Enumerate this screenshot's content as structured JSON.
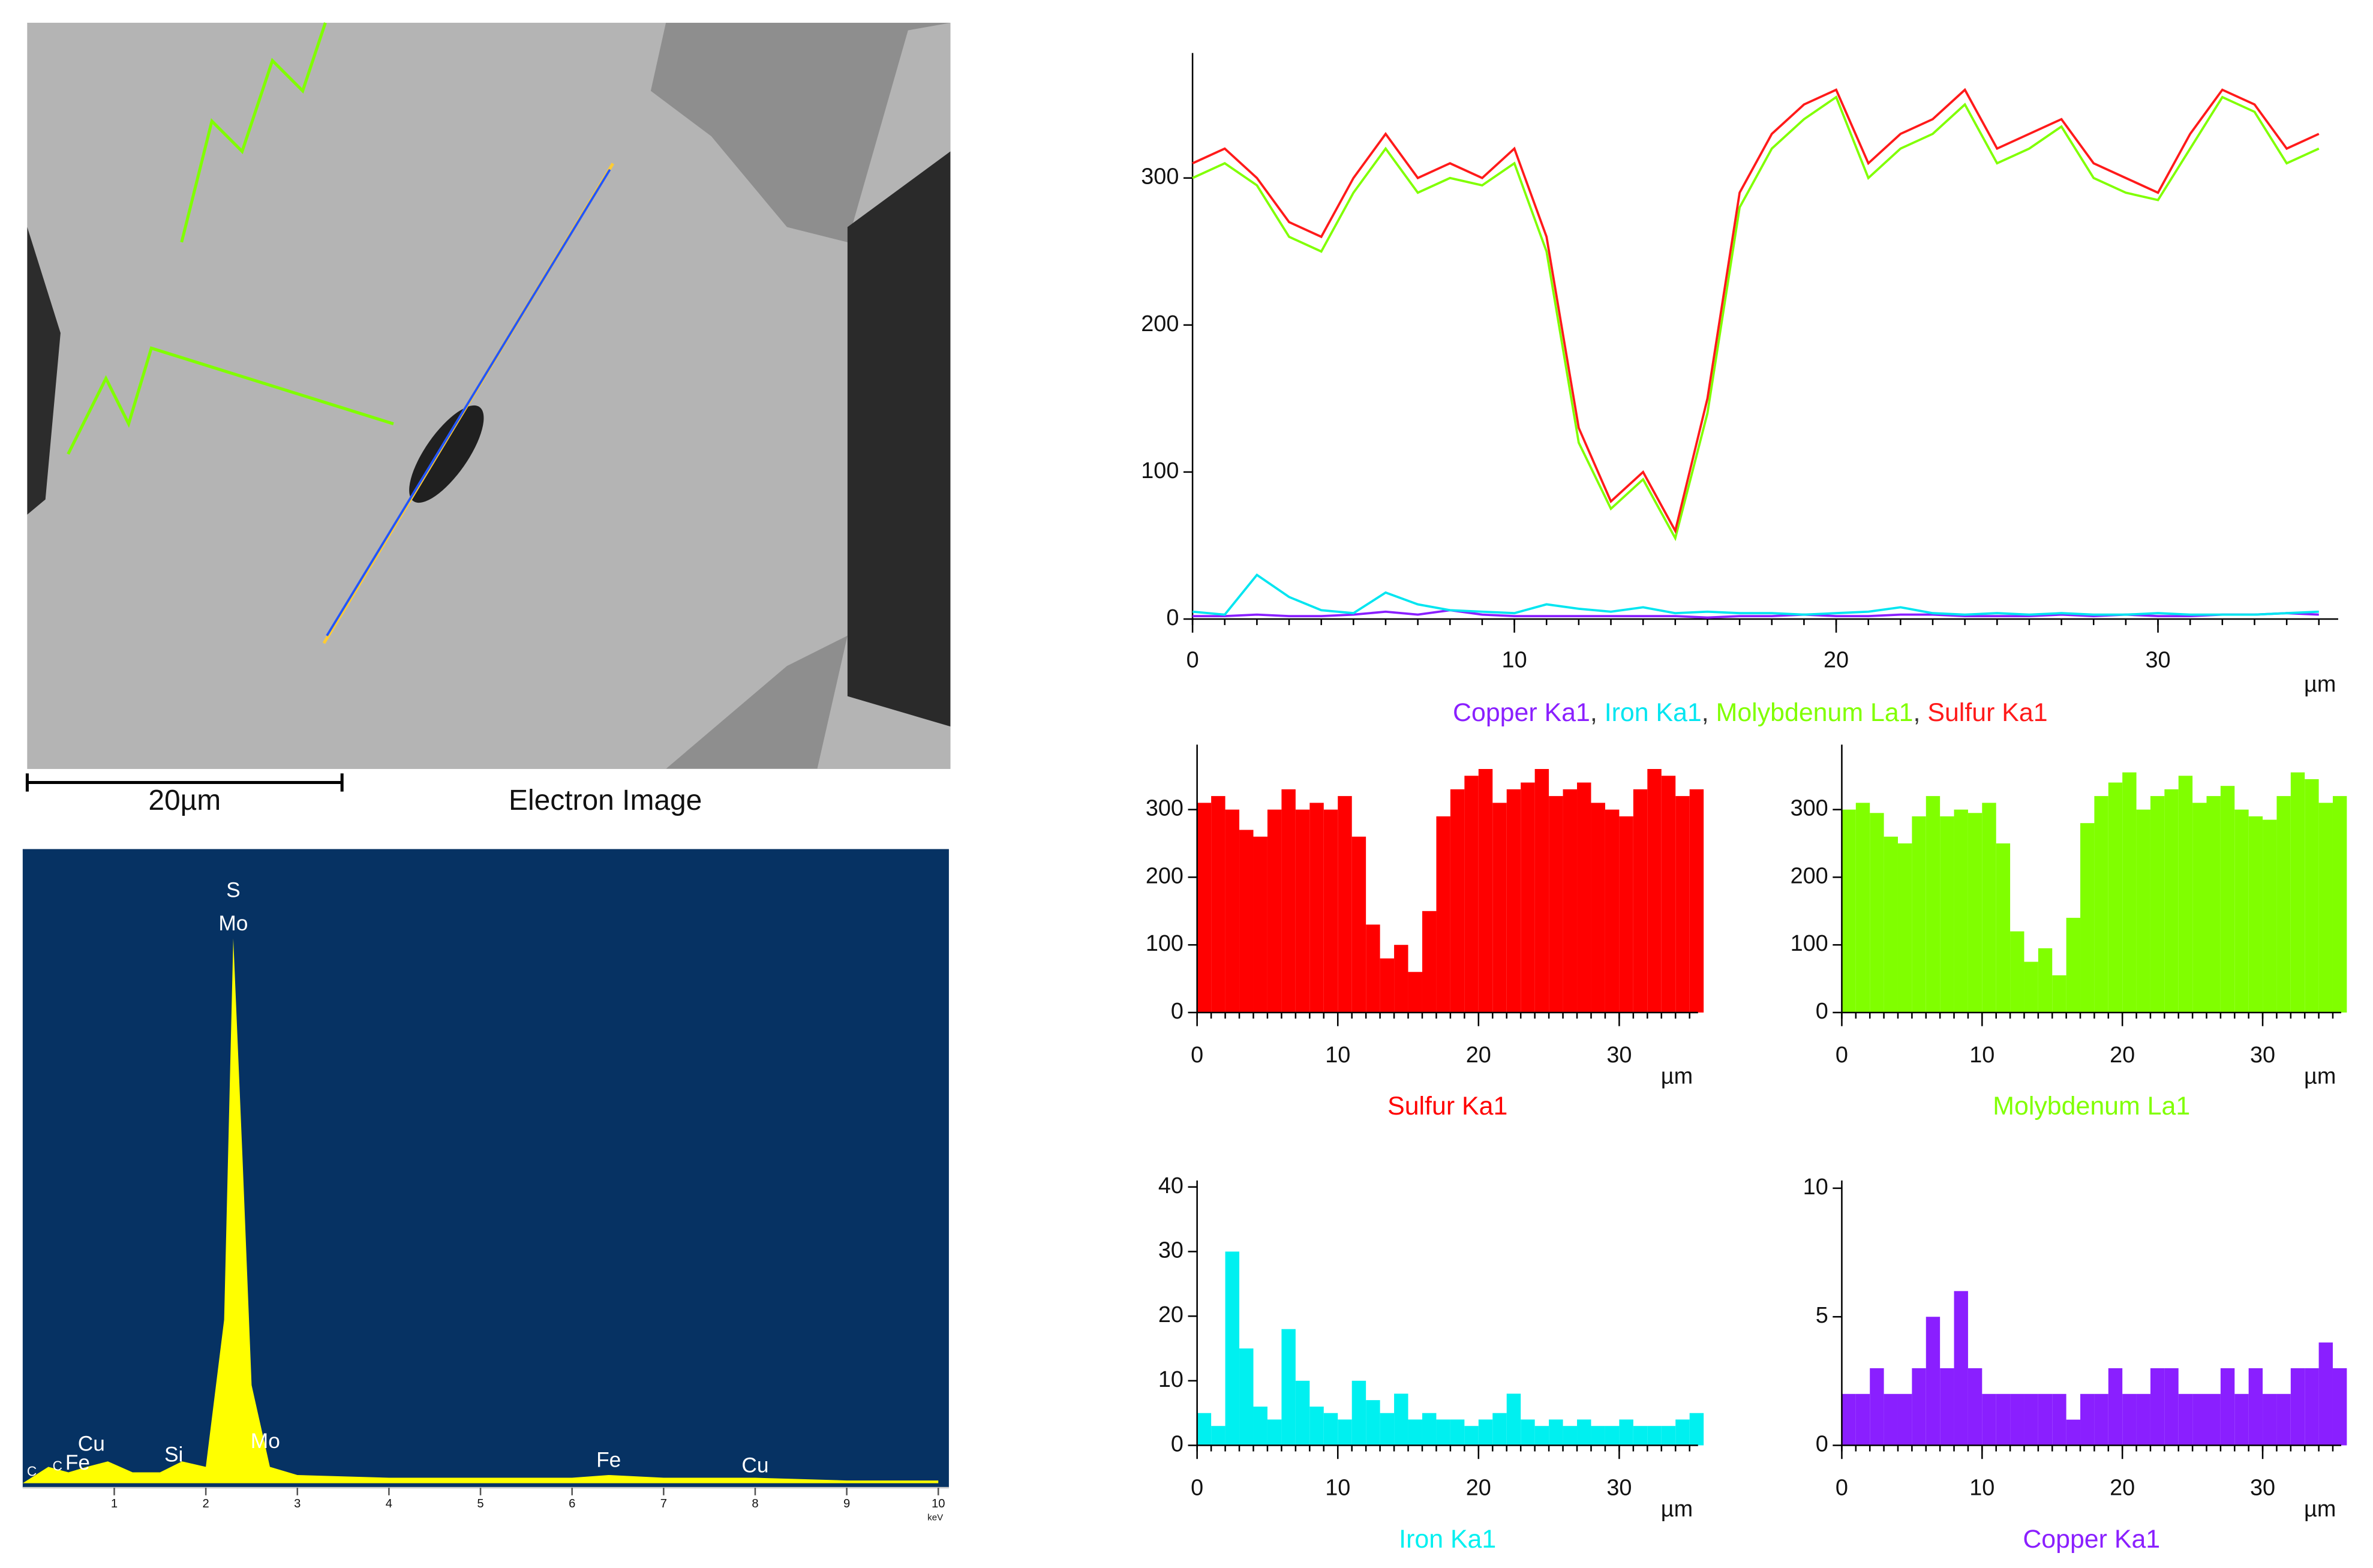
{
  "electron_image": {
    "scale_bar": "20µm",
    "caption": "Electron Image"
  },
  "chart_data": [
    {
      "type": "spectrum",
      "color": "#ffff00",
      "background": "#063263",
      "x": [
        0,
        0.28,
        0.5,
        0.7,
        0.93,
        1.2,
        1.5,
        1.74,
        2.0,
        2.2,
        2.3,
        2.4,
        2.5,
        2.7,
        3.0,
        4,
        5,
        6,
        6.4,
        7,
        8,
        9,
        10
      ],
      "values": [
        0,
        3,
        2,
        3,
        4,
        2,
        2,
        4,
        3,
        30,
        100,
        60,
        18,
        3,
        1.5,
        1,
        1,
        1,
        1.5,
        1,
        1,
        0.5,
        0.5
      ],
      "xlim": [
        0,
        10
      ],
      "ylim": [
        0,
        100
      ],
      "xticks": [
        1,
        2,
        3,
        4,
        5,
        6,
        7,
        8,
        9,
        10
      ],
      "x_label": "keV",
      "annotations": [
        {
          "text": "S",
          "x": 2.3,
          "y": 108.6
        },
        {
          "text": "Mo",
          "x": 2.3,
          "y": 102.5
        },
        {
          "text": "Mo",
          "x": 2.65,
          "y": 7.5
        },
        {
          "text": "Si",
          "x": 1.65,
          "y": 5
        },
        {
          "text": "Cu",
          "x": 0.75,
          "y": 7
        },
        {
          "text": "Fe",
          "x": 0.6,
          "y": 3.5
        },
        {
          "text": "C",
          "x": 0.1,
          "y": 2
        },
        {
          "text": "C",
          "x": 0.38,
          "y": 3
        },
        {
          "text": "Fe",
          "x": 6.4,
          "y": 4
        },
        {
          "text": "Cu",
          "x": 8.0,
          "y": 3
        }
      ]
    },
    {
      "type": "profile",
      "x_label": "µm",
      "legend_separator": ", ",
      "x": [
        0,
        1,
        2,
        3,
        4,
        5,
        6,
        7,
        8,
        9,
        10,
        11,
        12,
        13,
        14,
        15,
        16,
        17,
        18,
        19,
        20,
        21,
        22,
        23,
        24,
        25,
        26,
        27,
        28,
        29,
        30,
        31,
        32,
        33,
        34,
        35
      ],
      "xlim": [
        0,
        35.6
      ],
      "ylim": [
        0,
        385
      ],
      "xticks": [
        0,
        10,
        20,
        30
      ],
      "yticks": [
        0,
        100,
        200,
        300
      ],
      "series": [
        {
          "name": "Copper Ka1",
          "color": "#8a1fff",
          "values": [
            2,
            2,
            3,
            2,
            2,
            3,
            5,
            3,
            6,
            3,
            2,
            2,
            2,
            2,
            2,
            2,
            1,
            2,
            2,
            3,
            2,
            2,
            3,
            3,
            2,
            2,
            2,
            3,
            2,
            3,
            2,
            2,
            3,
            3,
            4,
            3
          ]
        },
        {
          "name": "Iron Ka1",
          "color": "#00e5f0",
          "values": [
            5,
            3,
            30,
            15,
            6,
            4,
            18,
            10,
            6,
            5,
            4,
            10,
            7,
            5,
            8,
            4,
            5,
            4,
            4,
            3,
            4,
            5,
            8,
            4,
            3,
            4,
            3,
            4,
            3,
            3,
            4,
            3,
            3,
            3,
            4,
            5
          ]
        },
        {
          "name": "Molybdenum La1",
          "color": "#80ff00",
          "values": [
            300,
            310,
            295,
            260,
            250,
            290,
            320,
            290,
            300,
            295,
            310,
            250,
            120,
            75,
            95,
            55,
            140,
            280,
            320,
            340,
            355,
            300,
            320,
            330,
            350,
            310,
            320,
            335,
            300,
            290,
            285,
            320,
            355,
            345,
            310,
            320
          ]
        },
        {
          "name": "Sulfur Ka1",
          "color": "#ff1a1a",
          "values": [
            310,
            320,
            300,
            270,
            260,
            300,
            330,
            300,
            310,
            300,
            320,
            260,
            130,
            80,
            100,
            60,
            150,
            290,
            330,
            350,
            360,
            310,
            330,
            340,
            360,
            320,
            330,
            340,
            310,
            300,
            290,
            330,
            360,
            350,
            320,
            330
          ]
        }
      ]
    },
    {
      "type": "bars",
      "title": "Sulfur Ka1",
      "color": "#ff0000",
      "x_label": "µm",
      "x": [
        0,
        1,
        2,
        3,
        4,
        5,
        6,
        7,
        8,
        9,
        10,
        11,
        12,
        13,
        14,
        15,
        16,
        17,
        18,
        19,
        20,
        21,
        22,
        23,
        24,
        25,
        26,
        27,
        28,
        29,
        30,
        31,
        32,
        33,
        34,
        35
      ],
      "values": [
        310,
        320,
        300,
        270,
        260,
        300,
        330,
        300,
        310,
        300,
        320,
        260,
        130,
        80,
        100,
        60,
        150,
        290,
        330,
        350,
        360,
        310,
        330,
        340,
        360,
        320,
        330,
        340,
        310,
        300,
        290,
        330,
        360,
        350,
        320,
        330
      ],
      "xlim": [
        0,
        35.6
      ],
      "ylim": [
        0,
        396
      ],
      "xticks": [
        0,
        10,
        20,
        30
      ],
      "yticks": [
        0,
        100,
        200,
        300
      ]
    },
    {
      "type": "bars",
      "title": "Molybdenum La1",
      "color": "#80ff00",
      "x_label": "µm",
      "x": [
        0,
        1,
        2,
        3,
        4,
        5,
        6,
        7,
        8,
        9,
        10,
        11,
        12,
        13,
        14,
        15,
        16,
        17,
        18,
        19,
        20,
        21,
        22,
        23,
        24,
        25,
        26,
        27,
        28,
        29,
        30,
        31,
        32,
        33,
        34,
        35
      ],
      "values": [
        300,
        310,
        295,
        260,
        250,
        290,
        320,
        290,
        300,
        295,
        310,
        250,
        120,
        75,
        95,
        55,
        140,
        280,
        320,
        340,
        355,
        300,
        320,
        330,
        350,
        310,
        320,
        335,
        300,
        290,
        285,
        320,
        355,
        345,
        310,
        320
      ],
      "xlim": [
        0,
        35.6
      ],
      "ylim": [
        0,
        396
      ],
      "xticks": [
        0,
        10,
        20,
        30
      ],
      "yticks": [
        0,
        100,
        200,
        300
      ]
    },
    {
      "type": "bars",
      "title": "Iron Ka1",
      "color": "#00f0f0",
      "x_label": "µm",
      "x": [
        0,
        1,
        2,
        3,
        4,
        5,
        6,
        7,
        8,
        9,
        10,
        11,
        12,
        13,
        14,
        15,
        16,
        17,
        18,
        19,
        20,
        21,
        22,
        23,
        24,
        25,
        26,
        27,
        28,
        29,
        30,
        31,
        32,
        33,
        34,
        35
      ],
      "values": [
        5,
        3,
        30,
        15,
        6,
        4,
        18,
        10,
        6,
        5,
        4,
        10,
        7,
        5,
        8,
        4,
        5,
        4,
        4,
        3,
        4,
        5,
        8,
        4,
        3,
        4,
        3,
        4,
        3,
        3,
        4,
        3,
        3,
        3,
        4,
        5
      ],
      "xlim": [
        0,
        35.6
      ],
      "ylim": [
        0,
        41
      ],
      "xticks": [
        0,
        10,
        20,
        30
      ],
      "yticks": [
        0,
        10,
        20,
        30,
        40
      ]
    },
    {
      "type": "bars",
      "title": "Copper Ka1",
      "color": "#8a1fff",
      "x_label": "µm",
      "x": [
        0,
        1,
        2,
        3,
        4,
        5,
        6,
        7,
        8,
        9,
        10,
        11,
        12,
        13,
        14,
        15,
        16,
        17,
        18,
        19,
        20,
        21,
        22,
        23,
        24,
        25,
        26,
        27,
        28,
        29,
        30,
        31,
        32,
        33,
        34,
        35
      ],
      "values": [
        2,
        2,
        3,
        2,
        2,
        3,
        5,
        3,
        6,
        3,
        2,
        2,
        2,
        2,
        2,
        2,
        1,
        2,
        2,
        3,
        2,
        2,
        3,
        3,
        2,
        2,
        2,
        3,
        2,
        3,
        2,
        2,
        3,
        3,
        4,
        3
      ],
      "xlim": [
        0,
        35.6
      ],
      "ylim": [
        0,
        10.3
      ],
      "xticks": [
        0,
        10,
        20,
        30
      ],
      "yticks": [
        0,
        5,
        10
      ]
    }
  ]
}
